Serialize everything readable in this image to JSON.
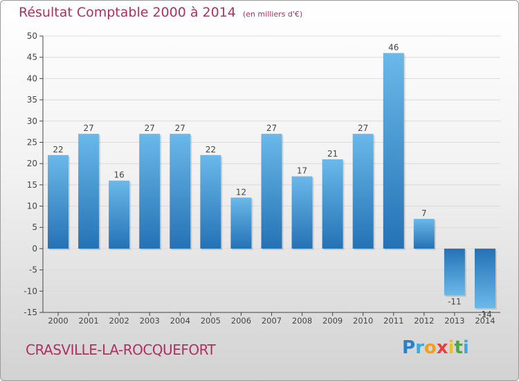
{
  "title": "Résultat Comptable 2000 à 2014",
  "unit": "(en milliers d'€)",
  "commune": "CRASVILLE-LA-ROCQUEFORT",
  "brand": {
    "text": "Proxiti",
    "letters": [
      "P",
      "r",
      "o",
      "x",
      "i",
      "t",
      "i"
    ],
    "colors": [
      "#2a7fc9",
      "#3da9e0",
      "#f0a020",
      "#e84040",
      "#f0c020",
      "#4aa840",
      "#3da9e0"
    ]
  },
  "colors": {
    "title": "#b03060",
    "bar_dark": "#2472b4",
    "bar_light": "#6bb8ea",
    "axis": "#444444"
  },
  "chart_data": {
    "type": "bar",
    "title": "Résultat Comptable 2000 à 2014",
    "ylabel": "en milliers d'€",
    "categories": [
      "2000",
      "2001",
      "2002",
      "2003",
      "2004",
      "2005",
      "2006",
      "2007",
      "2008",
      "2009",
      "2010",
      "2011",
      "2012",
      "2013",
      "2014"
    ],
    "values": [
      22,
      27,
      16,
      27,
      27,
      22,
      12,
      27,
      17,
      21,
      27,
      46,
      7,
      -11,
      -14
    ],
    "value_labels": [
      "22",
      "27",
      "16",
      "27",
      "27",
      "22",
      "12",
      "27",
      "17",
      "21",
      "27",
      "46",
      "7",
      "-11",
      "-14"
    ],
    "ylim": [
      -15,
      50
    ],
    "yticks": [
      50,
      45,
      40,
      35,
      30,
      25,
      20,
      15,
      10,
      5,
      0,
      -5,
      -10,
      -15
    ],
    "grid": true
  }
}
